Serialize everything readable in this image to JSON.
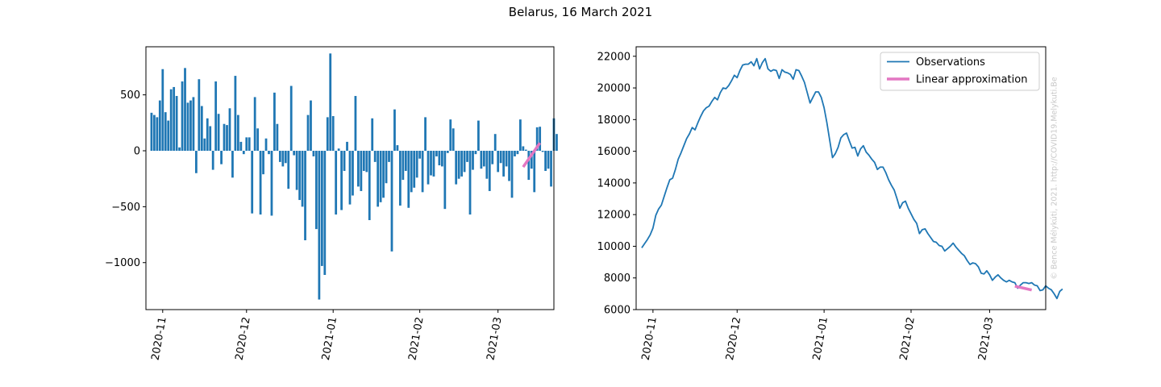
{
  "figure": {
    "title": "Belarus, 16 March 2021",
    "watermark": "© Bence Mélykúti, 2021. http://COVID19.Melykuti.Be"
  },
  "colors": {
    "bars": "#1f77b4",
    "observations": "#1f77b4",
    "approximation": "#e377c2"
  },
  "chart_data": [
    {
      "type": "bar",
      "x_axis": "date",
      "x_start": "2020-10-28",
      "xlim": [
        "2020-10-26",
        "2021-03-21"
      ],
      "ylim": [
        -1420,
        930
      ],
      "x_ticks": [
        "2020-11",
        "2020-12",
        "2021-01",
        "2021-02",
        "2021-03"
      ],
      "y_ticks": [
        500,
        0,
        -500,
        -1000
      ],
      "y_tick_labels": [
        "500",
        "0",
        "−500",
        "−1000"
      ],
      "values": [
        340,
        320,
        300,
        450,
        730,
        345,
        270,
        550,
        570,
        490,
        30,
        620,
        740,
        430,
        450,
        480,
        -200,
        640,
        400,
        110,
        290,
        220,
        -170,
        620,
        330,
        -120,
        240,
        230,
        380,
        -240,
        670,
        320,
        80,
        -30,
        120,
        120,
        -560,
        480,
        200,
        -570,
        -210,
        110,
        -30,
        -580,
        520,
        240,
        -100,
        -140,
        -110,
        -340,
        580,
        -40,
        -350,
        -440,
        -500,
        -800,
        320,
        450,
        -50,
        -700,
        -1330,
        -1030,
        -1110,
        300,
        870,
        310,
        -570,
        20,
        -530,
        -180,
        80,
        -480,
        -400,
        490,
        -320,
        -360,
        -180,
        -190,
        -620,
        290,
        -100,
        -500,
        -460,
        -420,
        -290,
        -100,
        -900,
        370,
        50,
        -490,
        -260,
        -180,
        -510,
        -370,
        -330,
        -240,
        -70,
        -370,
        300,
        -300,
        -220,
        -230,
        -50,
        -130,
        -140,
        -520,
        -20,
        280,
        200,
        -300,
        -250,
        -230,
        -190,
        -100,
        -570,
        -170,
        -30,
        270,
        -160,
        -140,
        -250,
        -360,
        -120,
        150,
        -190,
        -110,
        -230,
        -140,
        -270,
        -420,
        -50,
        -30,
        280,
        40,
        10,
        -260,
        -160,
        -370,
        210,
        215,
        -10,
        -180,
        -160,
        -320,
        290,
        150
      ],
      "approximation": {
        "x": [
          "2021-03-10",
          "2021-03-16"
        ],
        "y": [
          -145,
          70
        ]
      }
    },
    {
      "type": "line",
      "x_axis": "date",
      "x_start": "2020-10-28",
      "xlim": [
        "2020-10-26",
        "2021-03-21"
      ],
      "ylim": [
        6000,
        22600
      ],
      "x_ticks": [
        "2020-11",
        "2020-12",
        "2021-01",
        "2021-02",
        "2021-03"
      ],
      "y_ticks": [
        6000,
        8000,
        10000,
        12000,
        14000,
        16000,
        18000,
        20000,
        22000
      ],
      "legend": {
        "placement": "upper right",
        "entries": [
          "Observations",
          "Linear approximation"
        ]
      },
      "series": [
        {
          "name": "Observations",
          "values": [
            9900,
            10160,
            10420,
            10720,
            11150,
            11950,
            12350,
            12600,
            13150,
            13700,
            14200,
            14300,
            14850,
            15500,
            15900,
            16350,
            16800,
            17100,
            17500,
            17350,
            17800,
            18200,
            18550,
            18750,
            18850,
            19150,
            19400,
            19250,
            19700,
            20000,
            19950,
            20150,
            20450,
            20800,
            20650,
            21100,
            21450,
            21500,
            21500,
            21650,
            21400,
            21850,
            21200,
            21600,
            21850,
            21200,
            21050,
            21150,
            21100,
            20600,
            21150,
            21000,
            20950,
            20850,
            20550,
            21150,
            21100,
            20750,
            20350,
            19700,
            19050,
            19400,
            19750,
            19750,
            19400,
            18750,
            17800,
            16700,
            15600,
            15850,
            16250,
            16850,
            17050,
            17150,
            16650,
            16200,
            16250,
            15700,
            16150,
            16350,
            15950,
            15750,
            15500,
            15300,
            14850,
            15000,
            15000,
            14650,
            14200,
            13850,
            13550,
            13000,
            12400,
            12750,
            12850,
            12400,
            12050,
            11700,
            11450,
            10800,
            11050,
            11100,
            10800,
            10550,
            10300,
            10250,
            10050,
            10000,
            9700,
            9850,
            10000,
            10200,
            9950,
            9750,
            9550,
            9400,
            9100,
            8850,
            8950,
            8900,
            8700,
            8300,
            8250,
            8450,
            8200,
            7850,
            8050,
            8200,
            8000,
            7850,
            7750,
            7850,
            7750,
            7700,
            7350,
            7550,
            7700,
            7700,
            7650,
            7700,
            7550,
            7500,
            7200,
            7250,
            7500,
            7350,
            7250,
            7000,
            6700,
            7150,
            7300
          ]
        },
        {
          "name": "Linear approximation",
          "x": [
            "2021-03-10",
            "2021-03-16"
          ],
          "values": [
            7480,
            7240
          ]
        }
      ]
    }
  ]
}
